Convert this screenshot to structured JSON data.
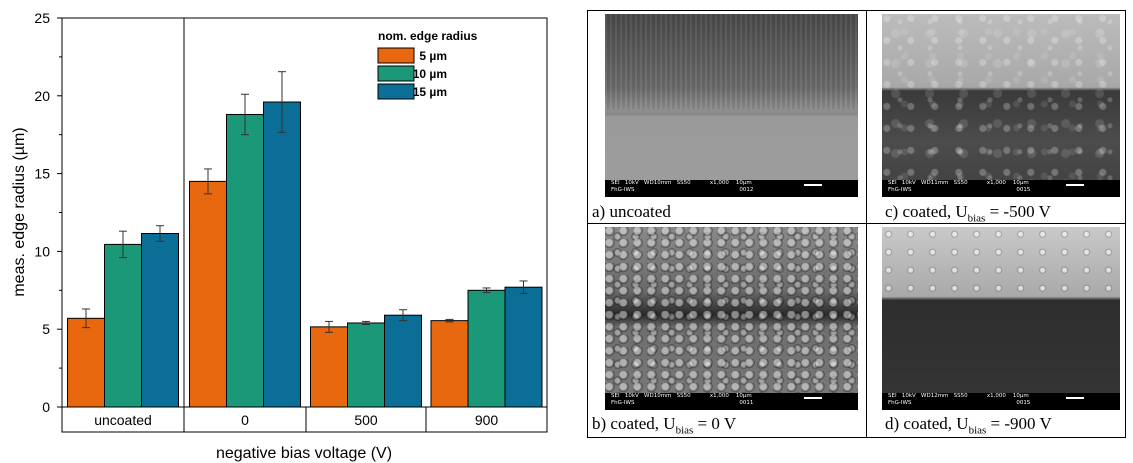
{
  "chart_data": {
    "type": "bar",
    "categories": [
      "uncoated",
      "0",
      "500",
      "900"
    ],
    "series": [
      {
        "name": "5 µm",
        "values": [
          5.7,
          14.5,
          5.15,
          5.55
        ],
        "errors": [
          0.6,
          0.8,
          0.35,
          0.08
        ],
        "color": "#e8680f"
      },
      {
        "name": "10 µm",
        "values": [
          10.45,
          18.8,
          5.4,
          7.5
        ],
        "errors": [
          0.85,
          1.3,
          0.1,
          0.15
        ],
        "color": "#1a9878"
      },
      {
        "name": "15 µm",
        "values": [
          11.15,
          19.6,
          5.9,
          7.7
        ],
        "errors": [
          0.5,
          1.95,
          0.35,
          0.4
        ],
        "color": "#0b6e96"
      }
    ],
    "legend_title": "nom. edge radius",
    "legend_position": "top-right",
    "xlabel": "negative bias voltage (V)",
    "ylabel": "meas. edge radius (µm)",
    "ylim": [
      0,
      25
    ],
    "yticks": [
      "0",
      "5",
      "10",
      "15",
      "20",
      "25"
    ],
    "grid": false
  },
  "micrographs": [
    {
      "caption_prefix": "a) uncoated",
      "sub": "",
      "caption_suffix": "",
      "info": "SEI   10kV   WD10mm   SS50           x1,000    10µm",
      "info2": "FhG-IWS                                                            0012"
    },
    {
      "caption_prefix": "c) coated, U",
      "sub": "bias",
      "caption_suffix": " = -500 V",
      "info": "SEI   10kV   WD11mm   SS50           x1,000    10µm",
      "info2": "FhG-IWS                                                            0015"
    },
    {
      "caption_prefix": "b) coated, U",
      "sub": "bias",
      "caption_suffix": " = 0 V",
      "info": "SEI   10kV   WD10mm   SS50           x1,000    10µm",
      "info2": "FhG-IWS                                                            0011"
    },
    {
      "caption_prefix": "d) coated, U",
      "sub": "bias",
      "caption_suffix": " = -900 V",
      "info": "SEI   10kV   WD12mm   SS50           x1,000    10µm",
      "info2": "FhG-IWS                                                            0015"
    }
  ]
}
